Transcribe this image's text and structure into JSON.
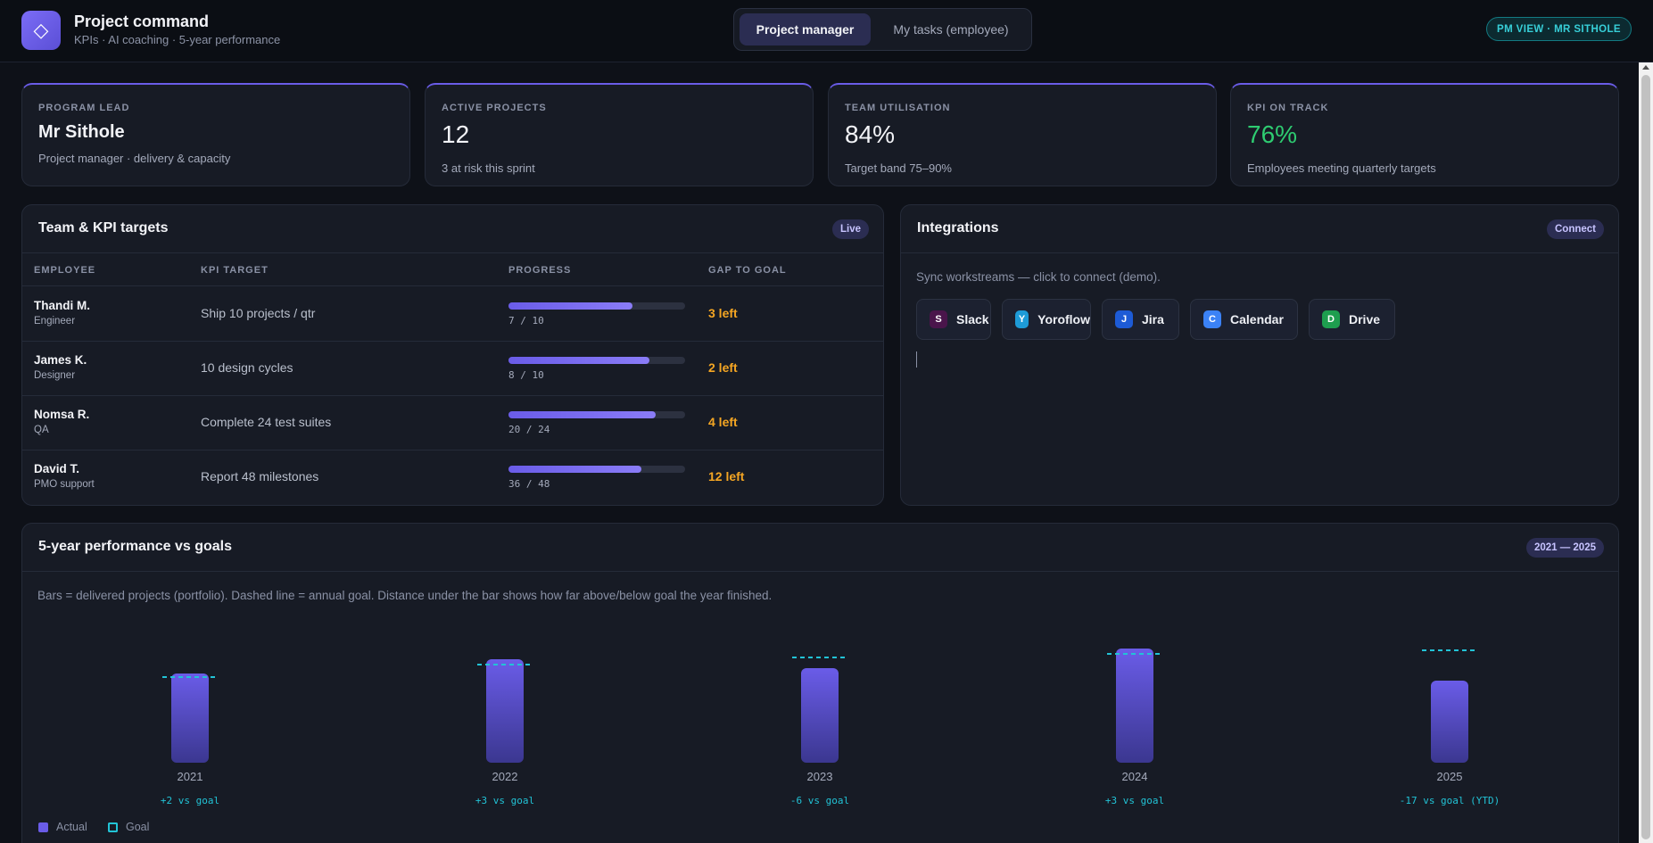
{
  "header": {
    "logo_glyph": "◇",
    "title": "Project command",
    "subtitle": "KPIs · AI coaching · 5-year performance",
    "tabs": [
      "Project manager",
      "My tasks (employee)"
    ],
    "active_tab": "Project manager",
    "badge": "PM VIEW · MR SITHOLE"
  },
  "stats": [
    {
      "label": "PROGRAM LEAD",
      "value": "Mr Sithole",
      "note": "Project manager · delivery & capacity"
    },
    {
      "label": "ACTIVE PROJECTS",
      "value": "12",
      "note": "3 at risk this sprint"
    },
    {
      "label": "TEAM UTILISATION",
      "value": "84%",
      "note": "Target band 75–90%"
    },
    {
      "label": "KPI ON TRACK",
      "value": "76%",
      "note": "Employees meeting quarterly targets"
    }
  ],
  "team": {
    "title": "Team & KPI targets",
    "badge": "Live",
    "columns": [
      "EMPLOYEE",
      "KPI TARGET",
      "PROGRESS",
      "GAP TO GOAL"
    ],
    "rows": [
      {
        "name": "Thandi M.",
        "role": "Engineer",
        "kpi": "Ship 10 projects / qtr",
        "done": 7,
        "goal": 10,
        "progress": "7 / 10",
        "gap": "3 left"
      },
      {
        "name": "James K.",
        "role": "Designer",
        "kpi": "10 design cycles",
        "done": 8,
        "goal": 10,
        "progress": "8 / 10",
        "gap": "2 left"
      },
      {
        "name": "Nomsa R.",
        "role": "QA",
        "kpi": "Complete 24 test suites",
        "done": 20,
        "goal": 24,
        "progress": "20 / 24",
        "gap": "4 left"
      },
      {
        "name": "David T.",
        "role": "PMO support",
        "kpi": "Report 48 milestones",
        "done": 36,
        "goal": 48,
        "progress": "36 / 48",
        "gap": "12 left"
      }
    ]
  },
  "integrations": {
    "title": "Integrations",
    "badge": "Connect",
    "hint": "Sync workstreams — click to connect (demo).",
    "items": [
      {
        "letter": "S",
        "name": "Slack",
        "color": "#4a154b"
      },
      {
        "letter": "Y",
        "name": "Yoroflow",
        "color": "#1e9bd7"
      },
      {
        "letter": "J",
        "name": "Jira",
        "color": "#1d5bd6"
      },
      {
        "letter": "C",
        "name": "Calendar",
        "color": "#3b82f6"
      },
      {
        "letter": "D",
        "name": "Drive",
        "color": "#1e9e4f"
      }
    ]
  },
  "performance": {
    "title": "5-year performance vs goals",
    "badge": "2021 — 2025",
    "hint": "Bars = delivered projects (portfolio). Dashed line = annual goal. Distance under the bar shows how far above/below goal the year finished.",
    "legend": [
      "Actual",
      "Goal"
    ]
  },
  "chart_data": {
    "type": "bar",
    "categories": [
      "2021",
      "2022",
      "2023",
      "2024",
      "2025"
    ],
    "series": [
      {
        "name": "Actual",
        "values": [
          50,
          58,
          53,
          64,
          46
        ]
      },
      {
        "name": "Goal",
        "values": [
          48,
          55,
          59,
          61,
          63
        ]
      }
    ],
    "annotations": [
      "+2 vs goal",
      "+3 vs goal",
      "-6 vs goal",
      "+3 vs goal",
      "-17 vs goal (YTD)"
    ],
    "colors": {
      "actual": "#6a5ce8",
      "goal": "#22c3d6"
    }
  }
}
